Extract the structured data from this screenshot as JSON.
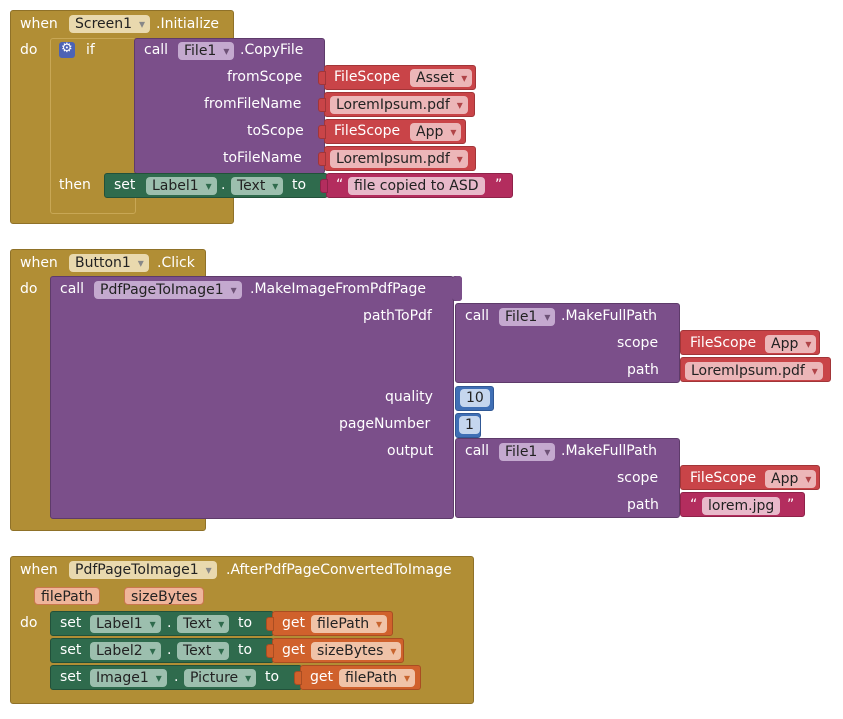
{
  "colors": {
    "event": "#b18e35",
    "procedure": "#7b4f8a",
    "scope": "#c94448",
    "text": "#b32d5e",
    "setter": "#2f6b4d",
    "number": "#3f6fb5",
    "getter": "#d0612c",
    "gear": "#4c63b5"
  },
  "block1": {
    "when": "when",
    "component": "Screen1",
    "event": ".Initialize",
    "do": "do",
    "if_label": "if",
    "call": "call",
    "call_component": "File1",
    "method": ".CopyFile",
    "params": {
      "fromScope": "fromScope",
      "fromFileName": "fromFileName",
      "toScope": "toScope",
      "toFileName": "toFileName"
    },
    "fileScope_label": "FileScope",
    "fromScope_value": "Asset",
    "fromFileName_value": "LoremIpsum.pdf",
    "toScope_value": "App",
    "toFileName_value": "LoremIpsum.pdf",
    "then": "then",
    "set": "set",
    "set_component": "Label1",
    "dot": ".",
    "set_property": "Text",
    "to": "to",
    "quote_open": "“",
    "quote_close": "”",
    "text_value": "file copied to ASD"
  },
  "block2": {
    "when": "when",
    "component": "Button1",
    "event": ".Click",
    "do": "do",
    "call": "call",
    "call_component": "PdfPageToImage1",
    "method": ".MakeImageFromPdfPage",
    "params": {
      "pathToPdf": "pathToPdf",
      "quality": "quality",
      "pageNumber": "pageNumber",
      "output": "output"
    },
    "inner_call": "call",
    "inner_component": "File1",
    "inner_method": ".MakeFullPath",
    "scope_label": "scope",
    "path_label": "path",
    "fileScope_label": "FileScope",
    "scope1_value": "App",
    "path1_value": "LoremIpsum.pdf",
    "quality_value": "10",
    "pageNumber_value": "1",
    "scope2_value": "App",
    "path2_value": "lorem.jpg",
    "quote_open": "“",
    "quote_close": "”"
  },
  "block3": {
    "when": "when",
    "component": "PdfPageToImage1",
    "event": ".AfterPdfPageConvertedToImage",
    "param1": "filePath",
    "param2": "sizeBytes",
    "do": "do",
    "set": "set",
    "dot": ".",
    "to": "to",
    "get": "get",
    "rows": [
      {
        "component": "Label1",
        "property": "Text",
        "getvar": "filePath"
      },
      {
        "component": "Label2",
        "property": "Text",
        "getvar": "sizeBytes"
      },
      {
        "component": "Image1",
        "property": "Picture",
        "getvar": "filePath"
      }
    ]
  }
}
